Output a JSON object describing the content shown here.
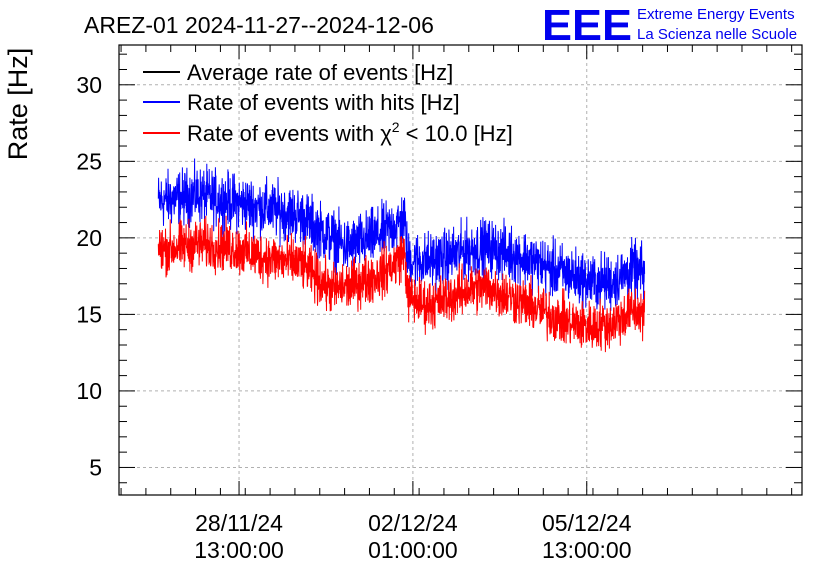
{
  "chart_data": {
    "type": "line",
    "title": "AREZ-01 2024-11-27--2024-12-06",
    "ylabel": "Rate [Hz]",
    "xlabel": "",
    "ylim": [
      3.2,
      32.6
    ],
    "xlim_hours": [
      -58,
      272
    ],
    "grid": true,
    "legend_position": "top-left",
    "logo": {
      "mark": "EEE",
      "line1": "Extreme Energy Events",
      "line2": "La Scienza nelle Scuole"
    },
    "y_ticks": [
      5,
      10,
      15,
      20,
      25,
      30
    ],
    "x_ticks": [
      {
        "hours": 0,
        "date": "28/11/24",
        "time": "13:00:00"
      },
      {
        "hours": 84,
        "date": "02/12/24",
        "time": "01:00:00"
      },
      {
        "hours": 168,
        "date": "05/12/24",
        "time": "13:00:00"
      }
    ],
    "x_range_hours": [
      -39,
      196
    ],
    "series": [
      {
        "name": "Average rate of events [Hz]",
        "label_main": "Average rate of events [Hz]",
        "color": "#000000",
        "noise": 0,
        "anchors": []
      },
      {
        "name": "Rate of events with hits [Hz]",
        "label_main": "Rate of events with hits [Hz]",
        "color": "#0000ff",
        "noise": 0.9,
        "anchors": [
          [
            -39,
            22.4
          ],
          [
            -20,
            22.8
          ],
          [
            -5,
            22.4
          ],
          [
            10,
            22.0
          ],
          [
            25,
            21.6
          ],
          [
            30,
            21.4
          ],
          [
            38,
            20.6
          ],
          [
            45,
            20.0
          ],
          [
            52,
            19.4
          ],
          [
            60,
            19.8
          ],
          [
            68,
            20.2
          ],
          [
            75,
            20.8
          ],
          [
            80,
            21.2
          ],
          [
            81.5,
            18.6
          ],
          [
            90,
            18.5
          ],
          [
            100,
            18.7
          ],
          [
            110,
            19.2
          ],
          [
            120,
            19.4
          ],
          [
            130,
            19.0
          ],
          [
            140,
            18.6
          ],
          [
            150,
            18.0
          ],
          [
            160,
            17.6
          ],
          [
            170,
            17.1
          ],
          [
            180,
            17.1
          ],
          [
            190,
            17.9
          ],
          [
            196,
            17.6
          ]
        ]
      },
      {
        "name": "Rate of events with χ² < 10.0 [Hz]",
        "label_main": "Rate of events with χ",
        "label_sup": "2",
        "label_tail": " < 10.0 [Hz]",
        "color": "#ff0000",
        "noise": 0.8,
        "anchors": [
          [
            -39,
            19.2
          ],
          [
            -20,
            19.6
          ],
          [
            -5,
            19.4
          ],
          [
            10,
            18.8
          ],
          [
            25,
            18.4
          ],
          [
            30,
            18.3
          ],
          [
            38,
            17.3
          ],
          [
            45,
            16.6
          ],
          [
            52,
            16.8
          ],
          [
            60,
            17.2
          ],
          [
            68,
            17.6
          ],
          [
            75,
            18.3
          ],
          [
            80,
            19.1
          ],
          [
            81.5,
            16.2
          ],
          [
            90,
            15.6
          ],
          [
            100,
            16.0
          ],
          [
            110,
            16.6
          ],
          [
            120,
            16.8
          ],
          [
            130,
            16.2
          ],
          [
            140,
            15.6
          ],
          [
            150,
            15.0
          ],
          [
            160,
            14.4
          ],
          [
            170,
            14.2
          ],
          [
            180,
            14.4
          ],
          [
            190,
            15.2
          ],
          [
            196,
            15.1
          ]
        ]
      }
    ]
  }
}
